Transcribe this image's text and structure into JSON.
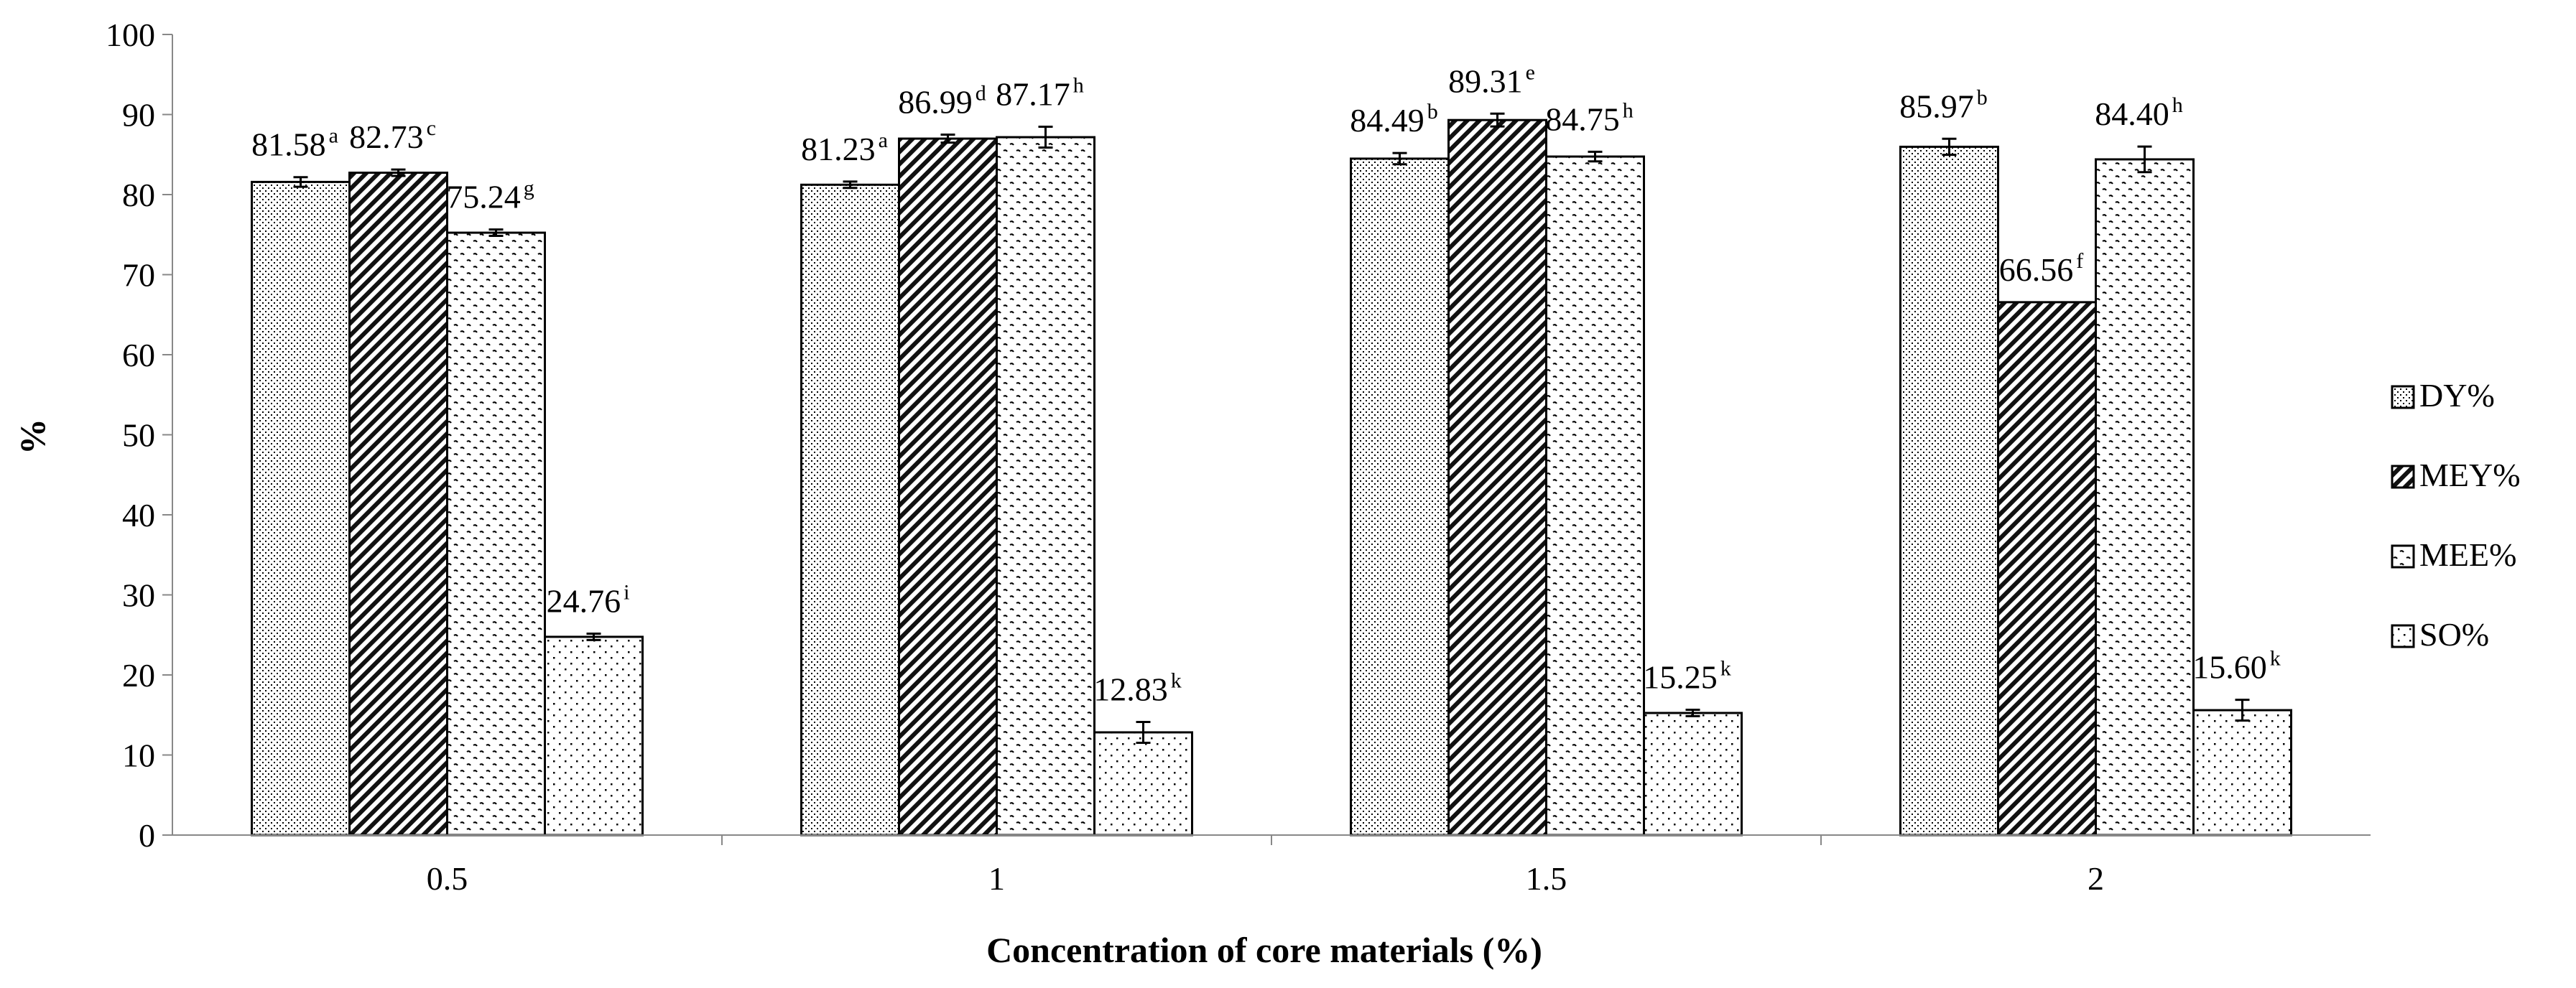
{
  "chart_data": {
    "type": "bar",
    "title": "",
    "xlabel": "Concentration of core materials (%)",
    "ylabel": "%",
    "ylim": [
      0,
      100
    ],
    "yticks": [
      "0",
      "10",
      "20",
      "30",
      "40",
      "50",
      "60",
      "70",
      "80",
      "90",
      "100"
    ],
    "categories": [
      "0.5",
      "1",
      "1.5",
      "2"
    ],
    "legend_position": "right",
    "series": [
      {
        "name": "DY%",
        "pattern": "fine-dots",
        "values": [
          81.58,
          81.23,
          84.49,
          85.97
        ],
        "errors": [
          0.6,
          0.4,
          0.7,
          1.0
        ],
        "labels": [
          "81.58",
          "81.23",
          "84.49",
          "85.97"
        ],
        "superscripts": [
          "a",
          "a",
          "b",
          "b"
        ]
      },
      {
        "name": "MEY%",
        "pattern": "diagonal-hatch",
        "values": [
          82.73,
          86.99,
          89.31,
          66.56
        ],
        "errors": [
          0.4,
          0.5,
          0.8,
          0.0
        ],
        "labels": [
          "82.73",
          "86.99",
          "89.31",
          "66.56"
        ],
        "superscripts": [
          "c",
          "d",
          "e",
          "f"
        ]
      },
      {
        "name": "MEE%",
        "pattern": "wave-dots",
        "values": [
          75.24,
          87.17,
          84.75,
          84.4
        ],
        "errors": [
          0.4,
          1.3,
          0.6,
          1.6
        ],
        "labels": [
          "75.24",
          "87.17",
          "84.75",
          "84.40"
        ],
        "superscripts": [
          "g",
          "h",
          "h",
          "h"
        ]
      },
      {
        "name": "SO%",
        "pattern": "sparse-dots",
        "values": [
          24.76,
          12.83,
          15.25,
          15.6
        ],
        "errors": [
          0.4,
          1.3,
          0.4,
          1.3
        ],
        "labels": [
          "24.76",
          "12.83",
          "15.25",
          "15.60"
        ],
        "superscripts": [
          "i",
          "k",
          "k",
          "k"
        ]
      }
    ]
  }
}
